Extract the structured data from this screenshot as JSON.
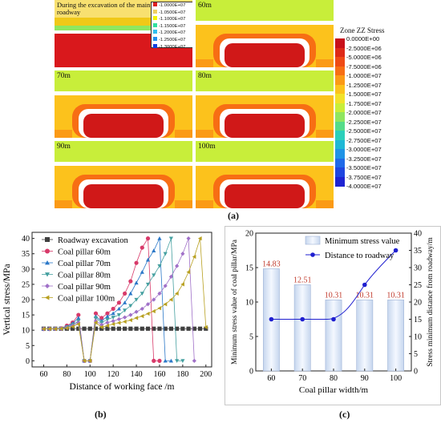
{
  "panel_labels": {
    "a": "(a)",
    "b": "(b)",
    "c": "(c)"
  },
  "sim_panel": {
    "colorbar_title": "Zone ZZ Stress",
    "colorbar_ticks": [
      "0.0000E+00",
      "-2.5000E+06",
      "-5.0000E+06",
      "-7.5000E+06",
      "-1.0000E+07",
      "-1.2500E+07",
      "-1.5000E+07",
      "-1.7500E+07",
      "-2.0000E+07",
      "-2.2500E+07",
      "-2.5000E+07",
      "-2.7500E+07",
      "-3.0000E+07",
      "-3.2500E+07",
      "-3.5000E+07",
      "-3.7500E+07",
      "-4.0000E+07"
    ],
    "colorbar_colors": [
      "#c8101a",
      "#de2a18",
      "#ef4a16",
      "#f76e14",
      "#fb9a16",
      "#fcc21c",
      "#f2e22a",
      "#c8ee3a",
      "#8fe660",
      "#55dc8a",
      "#2ccfba",
      "#1fb8d6",
      "#1f93e6",
      "#1f6ae8",
      "#1f46e0",
      "#1f24d2"
    ],
    "legend_colors": [
      "#e02020",
      "#f0d060",
      "#f4f400",
      "#30e0a0",
      "#30c0f0",
      "#2090f0",
      "#1040e0"
    ],
    "cells": [
      {
        "label": "During the excavation of the main roadway"
      },
      {
        "label": "60m"
      },
      {
        "label": "70m"
      },
      {
        "label": "80m"
      },
      {
        "label": "90m"
      },
      {
        "label": "100m"
      }
    ],
    "inset_legend": [
      "-1.0000E+07",
      "-1.0500E+07",
      "-1.1000E+07",
      "-1.1500E+07",
      "-1.2000E+07",
      "-1.2500E+07",
      "-1.3000E+07"
    ]
  },
  "chart_data": [
    {
      "type": "line",
      "xlabel": "Distance of working face /m",
      "ylabel": "Vertical stress/MPa",
      "xlim": [
        50,
        205
      ],
      "ylim": [
        -2,
        42
      ],
      "xticks": [
        60,
        80,
        100,
        120,
        140,
        160,
        180,
        200
      ],
      "yticks": [
        0,
        5,
        10,
        15,
        20,
        25,
        30,
        35,
        40
      ],
      "legend_position": "top-left",
      "series": [
        {
          "name": "Roadway excavation",
          "color": "#404040",
          "marker": "square",
          "x": [
            60,
            65,
            70,
            75,
            80,
            85,
            90,
            95,
            100,
            105,
            110,
            115,
            120,
            125,
            130,
            135,
            140,
            145,
            150,
            155,
            160,
            165,
            170,
            175,
            180,
            185,
            190,
            195,
            200
          ],
          "y": [
            10.5,
            10.5,
            10.5,
            10.5,
            10.5,
            10.5,
            10.5,
            10.5,
            10.5,
            10.5,
            10.5,
            10.5,
            10.5,
            10.5,
            10.5,
            10.5,
            10.5,
            10.5,
            10.5,
            10.5,
            10.5,
            10.5,
            10.5,
            10.5,
            10.5,
            10.5,
            10.5,
            10.5,
            10.5
          ]
        },
        {
          "name": "Coal pillar 60m",
          "color": "#d83a6a",
          "marker": "circle",
          "x": [
            60,
            65,
            70,
            75,
            80,
            85,
            90,
            95,
            100,
            105,
            110,
            115,
            120,
            125,
            130,
            135,
            140,
            145,
            150,
            155,
            160
          ],
          "y": [
            10.4,
            10.4,
            10.5,
            10.6,
            11.5,
            12.5,
            15,
            0,
            0,
            15.5,
            14,
            15.5,
            17,
            19,
            22,
            26,
            32,
            37,
            40,
            0,
            0
          ]
        },
        {
          "name": "Coal pillar 70m",
          "color": "#2b78c8",
          "marker": "triangle-up",
          "x": [
            60,
            65,
            70,
            75,
            80,
            85,
            90,
            95,
            100,
            105,
            110,
            115,
            120,
            125,
            130,
            135,
            140,
            145,
            150,
            155,
            160,
            165,
            170
          ],
          "y": [
            10.4,
            10.4,
            10.5,
            10.6,
            11.2,
            12.2,
            14,
            0,
            0,
            14.5,
            13,
            14.5,
            15.5,
            17,
            19,
            22,
            25.5,
            29,
            33,
            36,
            40,
            0,
            0
          ]
        },
        {
          "name": "Coal pillar 80m",
          "color": "#45a0a0",
          "marker": "triangle-down",
          "x": [
            60,
            65,
            70,
            75,
            80,
            85,
            90,
            95,
            100,
            105,
            110,
            115,
            120,
            125,
            130,
            135,
            140,
            145,
            150,
            155,
            160,
            165,
            170,
            175,
            180
          ],
          "y": [
            10.4,
            10.4,
            10.5,
            10.5,
            11,
            11.8,
            13,
            0,
            0,
            14,
            12.5,
            13.5,
            14.2,
            15,
            16.5,
            18,
            20,
            22,
            25,
            28,
            31,
            35,
            40,
            0,
            0
          ]
        },
        {
          "name": "Coal pillar 90m",
          "color": "#a070c8",
          "marker": "diamond",
          "x": [
            60,
            65,
            70,
            75,
            80,
            85,
            90,
            95,
            100,
            105,
            110,
            115,
            120,
            125,
            130,
            135,
            140,
            145,
            150,
            155,
            160,
            165,
            170,
            175,
            180,
            185,
            190
          ],
          "y": [
            10.4,
            10.4,
            10.4,
            10.5,
            10.8,
            11.5,
            12.5,
            0,
            0,
            13,
            11.8,
            12.5,
            13,
            13.6,
            14.2,
            15,
            16,
            17,
            18.5,
            20,
            22,
            24.5,
            27.5,
            31,
            35,
            40,
            0
          ]
        },
        {
          "name": "Coal pillar 100m",
          "color": "#b8a020",
          "marker": "triangle-left",
          "x": [
            60,
            65,
            70,
            75,
            80,
            85,
            90,
            95,
            100,
            105,
            110,
            115,
            120,
            125,
            130,
            135,
            140,
            145,
            150,
            155,
            160,
            165,
            170,
            175,
            180,
            185,
            190,
            195,
            200
          ],
          "y": [
            10.4,
            10.4,
            10.4,
            10.5,
            10.7,
            11.2,
            12,
            0,
            0,
            12.5,
            11,
            11.5,
            12,
            12.4,
            12.8,
            13.3,
            14,
            14.6,
            15.4,
            16.2,
            17.2,
            18.5,
            20,
            22,
            25,
            29,
            34,
            40,
            11
          ]
        }
      ]
    },
    {
      "type": "bar",
      "xlabel": "Coal pillar width/m",
      "ylabel": "Minimum stress value of coal pillar/MPa",
      "ylabel_right": "Stress minimum distance from roadway/m",
      "categories": [
        "60",
        "70",
        "80",
        "90",
        "100"
      ],
      "ylim": [
        0,
        20
      ],
      "yticks": [
        0,
        5,
        10,
        15,
        20
      ],
      "ylim_right": [
        0,
        40
      ],
      "yticks_right": [
        0,
        5,
        10,
        15,
        20,
        25,
        30,
        35,
        40
      ],
      "legend_position": "top-center",
      "series": [
        {
          "name": "Minimum stress value",
          "type": "bar",
          "values": [
            14.83,
            12.51,
            10.31,
            10.31,
            10.31
          ],
          "labels": [
            "14.83",
            "12.51",
            "10.31",
            "10.31",
            "10.31"
          ]
        },
        {
          "name": "Distance to roadway",
          "type": "line",
          "values": [
            15,
            15,
            15,
            25,
            35
          ],
          "color": "#1f1fd0"
        }
      ]
    }
  ]
}
